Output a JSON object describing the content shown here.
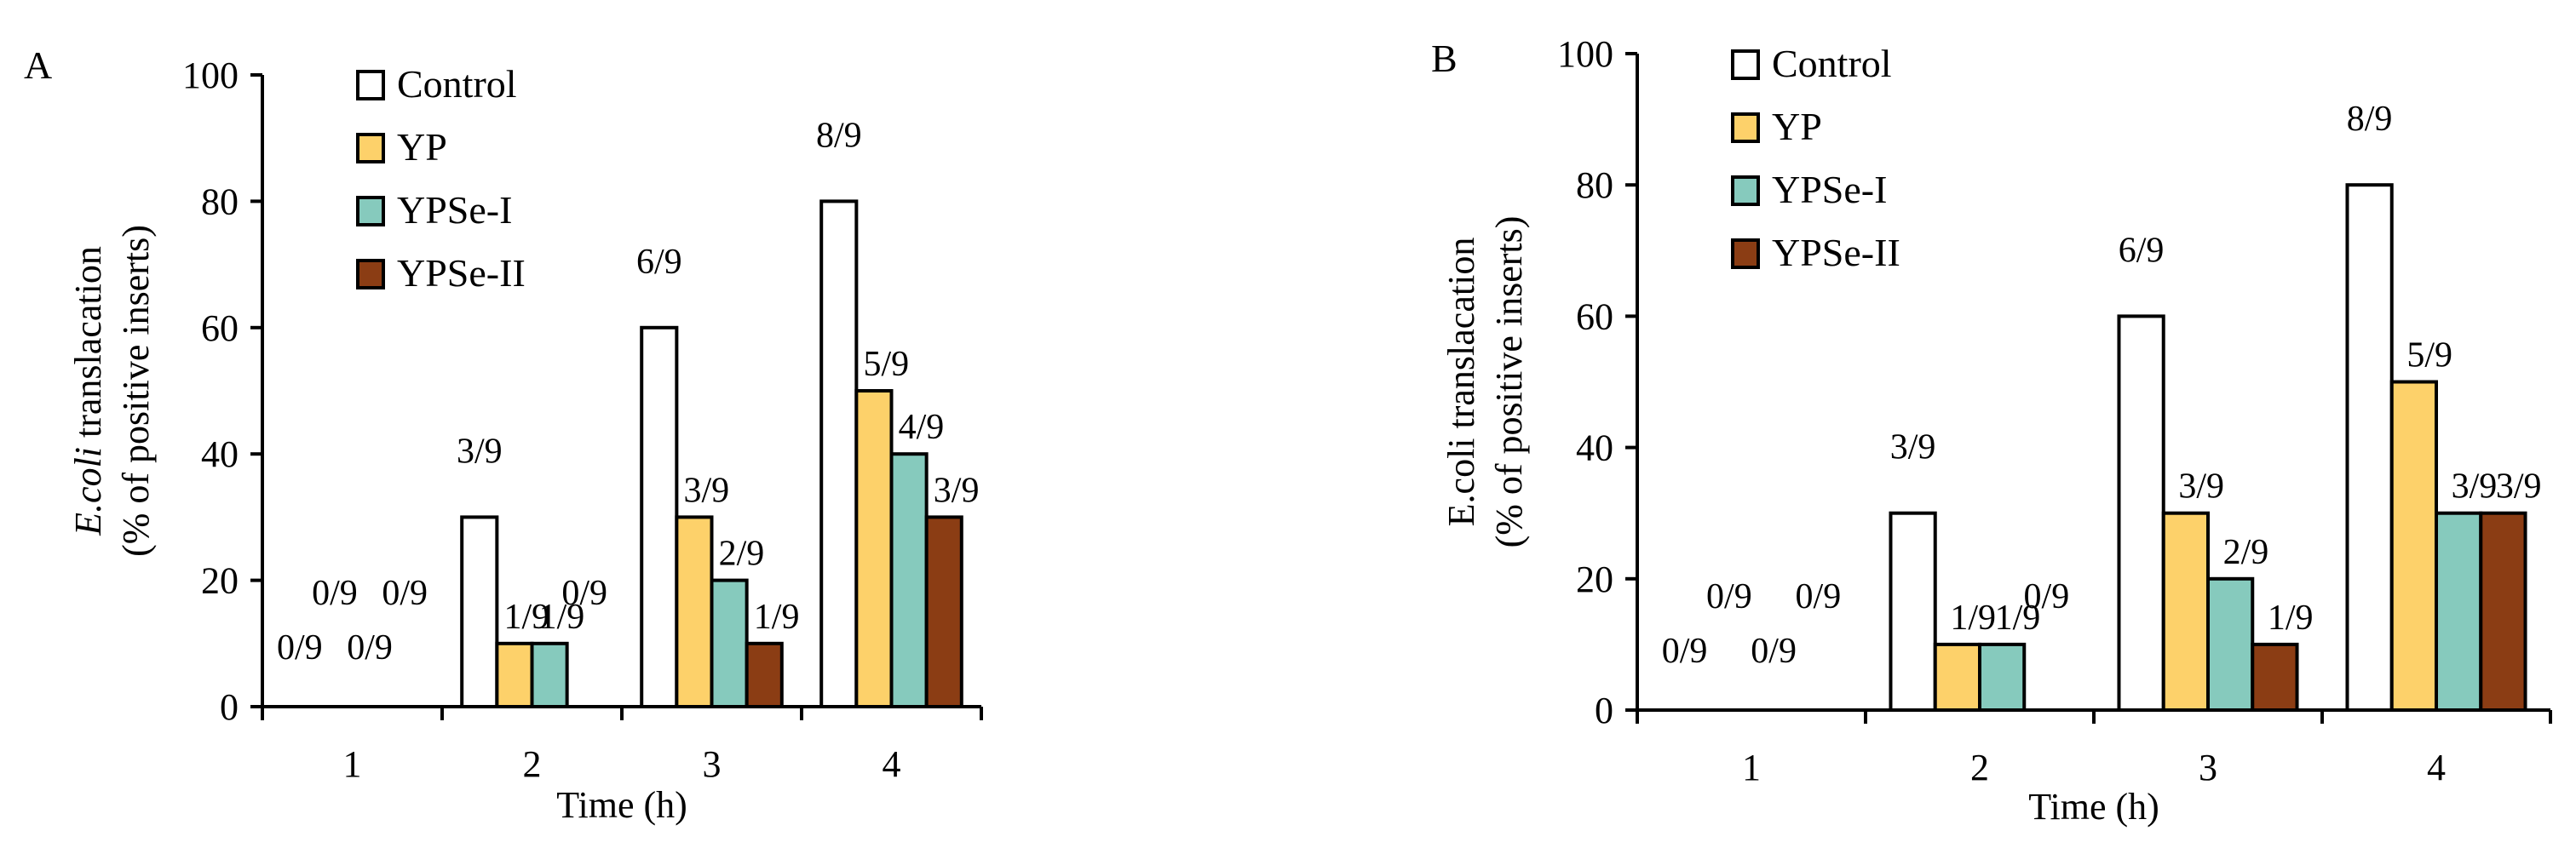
{
  "chart_data": [
    {
      "type": "bar",
      "panel_label": "A",
      "ylabel_italic": "E.coli",
      "ylabel_rest": " translacation",
      "ylabel_line2": "(% of positive inserts)",
      "xlabel": "Time (h)",
      "categories": [
        "1",
        "2",
        "3",
        "4"
      ],
      "ylim": [
        0,
        100
      ],
      "yticks": [
        "0",
        "20",
        "40",
        "60",
        "80",
        "100"
      ],
      "legend_position": "top-left",
      "series": [
        {
          "name": "Control",
          "color": "#ffffff",
          "values": [
            0,
            30,
            60,
            80
          ],
          "labels": [
            "0/9",
            "3/9",
            "6/9",
            "8/9"
          ]
        },
        {
          "name": "YP",
          "color": "#fdd16a",
          "values": [
            0,
            10,
            30,
            50
          ],
          "labels": [
            "0/9",
            "1/9",
            "3/9",
            "5/9"
          ]
        },
        {
          "name": "YPSe-I",
          "color": "#86cabd",
          "values": [
            0,
            10,
            20,
            40
          ],
          "labels": [
            "0/9",
            "1/9",
            "2/9",
            "4/9"
          ]
        },
        {
          "name": "YPSe-II",
          "color": "#8b3d14",
          "values": [
            0,
            0,
            10,
            30
          ],
          "labels": [
            "0/9",
            "0/9",
            "1/9",
            "3/9"
          ]
        }
      ]
    },
    {
      "type": "bar",
      "panel_label": "B",
      "ylabel_italic": "",
      "ylabel_rest": "E.coli translacation",
      "ylabel_line2": "(% of positive inserts)",
      "xlabel": "Time (h)",
      "categories": [
        "1",
        "2",
        "3",
        "4"
      ],
      "ylim": [
        0,
        100
      ],
      "yticks": [
        "0",
        "20",
        "40",
        "60",
        "80",
        "100"
      ],
      "legend_position": "top-left",
      "series": [
        {
          "name": "Control",
          "color": "#ffffff",
          "values": [
            0,
            30,
            60,
            80
          ],
          "labels": [
            "0/9",
            "3/9",
            "6/9",
            "8/9"
          ]
        },
        {
          "name": "YP",
          "color": "#fdd16a",
          "values": [
            0,
            10,
            30,
            50
          ],
          "labels": [
            "0/9",
            "1/9",
            "3/9",
            "5/9"
          ]
        },
        {
          "name": "YPSe-I",
          "color": "#86cabd",
          "values": [
            0,
            10,
            20,
            30
          ],
          "labels": [
            "0/9",
            "1/9",
            "2/9",
            "3/9"
          ]
        },
        {
          "name": "YPSe-II",
          "color": "#8b3d14",
          "values": [
            0,
            0,
            10,
            30
          ],
          "labels": [
            "0/9",
            "0/9",
            "1/9",
            "3/9"
          ]
        }
      ]
    }
  ]
}
